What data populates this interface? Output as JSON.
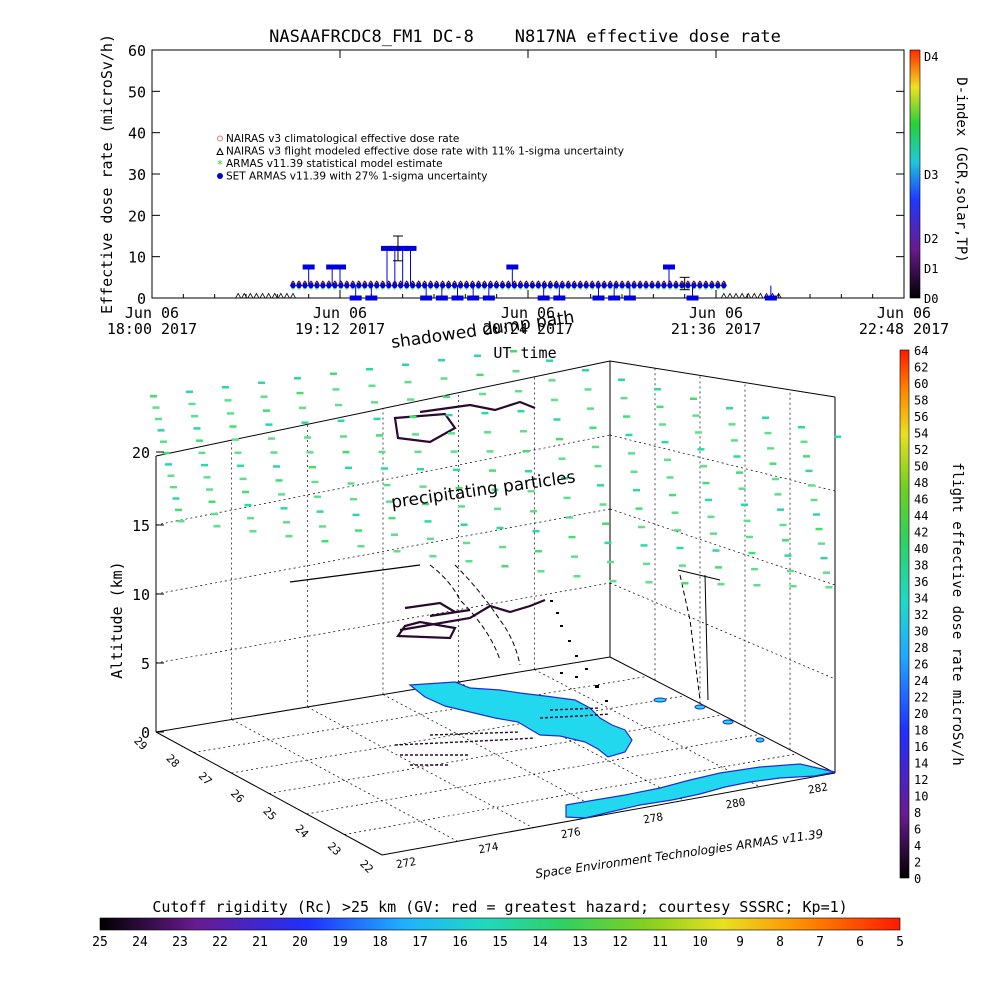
{
  "chart_data": [
    {
      "type": "scatter",
      "title": "NASAAFRCDC8_FM1 DC-8    N817NA effective dose rate",
      "xlabel": "UT time",
      "ylabel": "Effective dose rate (microSv/h)",
      "ylim": [
        0,
        60
      ],
      "yticks": [
        "0",
        "10",
        "20",
        "30",
        "40",
        "50",
        "60"
      ],
      "xticks": [
        {
          "date": "Jun 06",
          "time": "18:00 2017"
        },
        {
          "date": "Jun 06",
          "time": "19:12 2017"
        },
        {
          "date": "Jun 06",
          "time": "20:24 2017"
        },
        {
          "date": "Jun 06",
          "time": "21:36 2017"
        },
        {
          "date": "Jun 06",
          "time": "22:48 2017"
        }
      ],
      "x_range_hours_ut": [
        18.0,
        22.8
      ],
      "legend_position": "upper-left",
      "legend": [
        {
          "label": "NAIRAS v3 climatological effective dose rate",
          "color": "#e07070"
        },
        {
          "label": "NAIRAS v3 flight modeled effective dose rate with 11% 1-sigma uncertainty",
          "color": "#000000"
        },
        {
          "label": "ARMAS v11.39 statistical model estimate",
          "color": "#22cc22"
        },
        {
          "label": "SET ARMAS v11.39 with 27% 1-sigma uncertainty",
          "color": "#0000dd"
        }
      ],
      "series": [
        {
          "name": "NAIRAS v3 climatological effective dose rate",
          "color": "#e07070",
          "segments": [
            {
              "x": [
                18.9,
                21.65
              ],
              "y": 3.5
            }
          ]
        },
        {
          "name": "NAIRAS v3 flight modeled effective dose rate with 11% 1-sigma uncertainty",
          "color": "#000000",
          "segments": [
            {
              "x": [
                18.55,
                18.9
              ],
              "y": 0.5
            },
            {
              "x": [
                18.9,
                21.65
              ],
              "y": 3.5
            },
            {
              "x": [
                21.65,
                22.0
              ],
              "y": 0.5
            }
          ]
        },
        {
          "name": "ARMAS v11.39 statistical model estimate",
          "color": "#22cc22",
          "segments": [
            {
              "x": [
                18.9,
                21.65
              ],
              "y": 2.0
            }
          ]
        },
        {
          "name": "SET ARMAS v11.39 with 27% 1-sigma uncertainty",
          "color": "#0000dd",
          "segments": [
            {
              "x": [
                18.9,
                21.65
              ],
              "y": 3.0
            }
          ],
          "points": [
            {
              "x": 19.0,
              "y": 7.5
            },
            {
              "x": 19.15,
              "y": 7.5
            },
            {
              "x": 19.2,
              "y": 7.5
            },
            {
              "x": 19.5,
              "y": 12
            },
            {
              "x": 19.55,
              "y": 12
            },
            {
              "x": 19.6,
              "y": 12
            },
            {
              "x": 19.65,
              "y": 12
            },
            {
              "x": 20.3,
              "y": 7.5
            },
            {
              "x": 21.3,
              "y": 7.5
            },
            {
              "x": 19.3,
              "y": 0
            },
            {
              "x": 19.4,
              "y": 0
            },
            {
              "x": 19.75,
              "y": 0
            },
            {
              "x": 19.85,
              "y": 0
            },
            {
              "x": 19.95,
              "y": 0
            },
            {
              "x": 20.05,
              "y": 0
            },
            {
              "x": 20.15,
              "y": 0
            },
            {
              "x": 20.5,
              "y": 0
            },
            {
              "x": 20.6,
              "y": 0
            },
            {
              "x": 20.85,
              "y": 0
            },
            {
              "x": 20.95,
              "y": 0
            },
            {
              "x": 21.05,
              "y": 0
            },
            {
              "x": 21.45,
              "y": 0
            },
            {
              "x": 21.95,
              "y": 0
            }
          ],
          "errorbars": [
            {
              "x": 19.57,
              "y": 12,
              "low": 9,
              "high": 15
            },
            {
              "x": 21.4,
              "y": 3.5,
              "low": 2,
              "high": 5
            }
          ]
        }
      ],
      "right_axis": {
        "label": "D-index (GCR,solar,TP)",
        "ticks": [
          "D0",
          "D1",
          "D2",
          "D3",
          "D4"
        ]
      }
    },
    {
      "type": "scatter",
      "title": "",
      "xlabel": "",
      "ylabel": "Altitude (km)",
      "zlim": [
        0,
        20
      ],
      "zticks": [
        "0",
        "5",
        "10",
        "15",
        "20"
      ],
      "latitude_ticks": [
        "22",
        "23",
        "24",
        "25",
        "26",
        "27",
        "28",
        "29"
      ],
      "longitude_ticks": [
        "272",
        "274",
        "276",
        "278",
        "280",
        "282"
      ],
      "annotations": [
        "shadowed dump path",
        "precipitating particles"
      ],
      "credit": "Space Environment Technologies ARMAS v11.39",
      "colorbar_right": {
        "label": "flight effective dose rate microSv/h",
        "ticks": [
          "0",
          "2",
          "4",
          "6",
          "8",
          "10",
          "12",
          "14",
          "16",
          "18",
          "20",
          "22",
          "24",
          "26",
          "28",
          "30",
          "32",
          "34",
          "36",
          "38",
          "40",
          "42",
          "44",
          "46",
          "48",
          "50",
          "52",
          "54",
          "56",
          "58",
          "60",
          "62",
          "64"
        ]
      },
      "colorbar_bottom": {
        "label": "Cutoff rigidity (Rc) >25 km (GV: red = greatest hazard; courtesy SSSRC; Kp=1)",
        "ticks": [
          "25",
          "24",
          "23",
          "22",
          "21",
          "20",
          "19",
          "18",
          "17",
          "16",
          "15",
          "14",
          "13",
          "12",
          "11",
          "10",
          "9",
          "8",
          "7",
          "6",
          "5"
        ]
      }
    }
  ]
}
